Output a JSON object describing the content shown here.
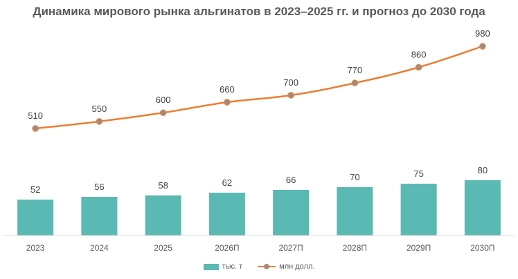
{
  "title": "Динамика мирового рынка альгинатов в 2023–2025 гг. и прогноз до 2030 года",
  "colors": {
    "bar": "#5AB9B3",
    "line": "#ED7D31",
    "marker": "#8A8F9A",
    "axis": "#D9D9D9"
  },
  "chart_data": {
    "type": "bar+line",
    "categories": [
      "2023",
      "2024",
      "2025",
      "2026П",
      "2027П",
      "2028П",
      "2029П",
      "2030П"
    ],
    "series": [
      {
        "name": "тыс. т",
        "type": "bar",
        "values": [
          52,
          56,
          58,
          62,
          66,
          70,
          75,
          80
        ]
      },
      {
        "name": "млн долл.",
        "type": "line",
        "values": [
          510,
          550,
          600,
          660,
          700,
          770,
          860,
          980
        ]
      }
    ],
    "grid": false,
    "legend_position": "bottom"
  }
}
